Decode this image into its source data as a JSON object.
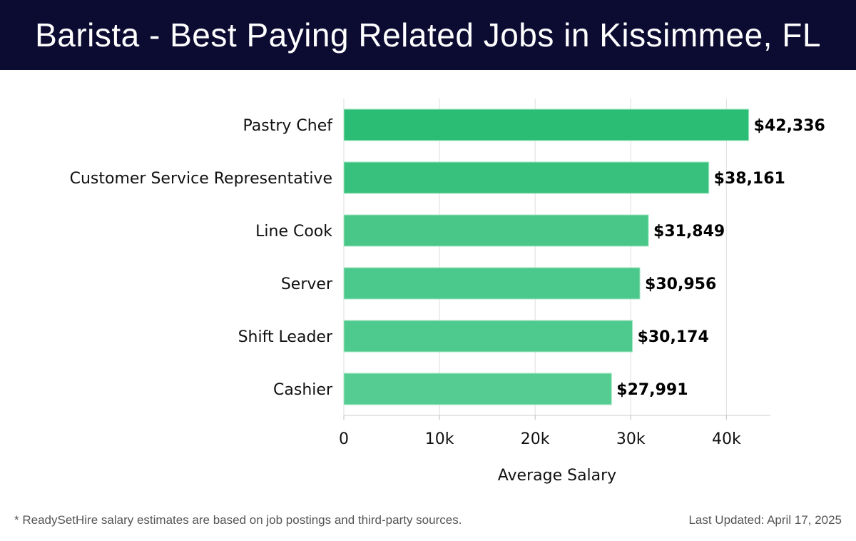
{
  "header": {
    "title": "Barista - Best Paying Related Jobs in Kissimmee, FL"
  },
  "chart_data": {
    "type": "bar",
    "orientation": "horizontal",
    "title": "Barista - Best Paying Related Jobs in Kissimmee, FL",
    "categories": [
      "Pastry Chef",
      "Customer Service Representative",
      "Line Cook",
      "Server",
      "Shift Leader",
      "Cashier"
    ],
    "values": [
      42336,
      38161,
      31849,
      30956,
      30174,
      27991
    ],
    "data_labels": [
      "$42,336",
      "$38,161",
      "$31,849",
      "$30,956",
      "$30,174",
      "$27,991"
    ],
    "xlabel": "Average Salary",
    "ylabel": "",
    "xlim": [
      0,
      44600
    ],
    "xticks": [
      0,
      10000,
      20000,
      30000,
      40000
    ],
    "xtick_labels": [
      "0",
      "10k",
      "20k",
      "30k",
      "40k"
    ],
    "grid": true,
    "colors": [
      "#2bbd74",
      "#38c17d",
      "#48c788",
      "#4bc88b",
      "#4fca8e",
      "#55cc92"
    ]
  },
  "footer": {
    "note": "* ReadySetHire salary estimates are based on job postings and third-party sources.",
    "updated": "Last Updated: April 17, 2025"
  }
}
